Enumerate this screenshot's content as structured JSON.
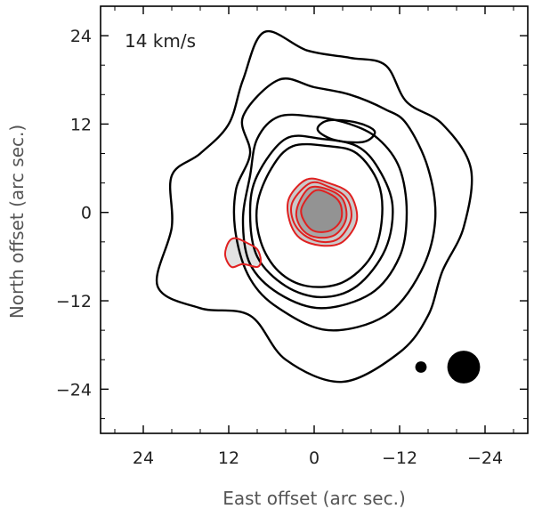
{
  "chart_data": {
    "type": "contour",
    "annotation": "14 km/s",
    "xlabel": "East offset (arc sec.)",
    "ylabel": "North offset (arc sec.)",
    "xlim": [
      30,
      -30
    ],
    "ylim": [
      -30,
      28
    ],
    "xticks": [
      24,
      12,
      0,
      -12,
      -24
    ],
    "yticks": [
      24,
      12,
      0,
      -12,
      -24
    ],
    "xtick_labels": [
      "24",
      "12",
      "0",
      "−12",
      "−24"
    ],
    "ytick_labels": [
      "24",
      "12",
      "0",
      "−12",
      "−24"
    ],
    "grid": false,
    "colors": {
      "outer_contours": "#000000",
      "inner_contours": "#e02020",
      "emission": "#8a8a8a"
    },
    "black_contours": [
      {
        "level": 1,
        "points": [
          [
            7,
            24.5
          ],
          [
            1,
            22
          ],
          [
            -5,
            21
          ],
          [
            -10,
            20
          ],
          [
            -13,
            15
          ],
          [
            -18,
            12
          ],
          [
            -22,
            6
          ],
          [
            -21,
            -2
          ],
          [
            -18,
            -8
          ],
          [
            -16,
            -14
          ],
          [
            -12,
            -19
          ],
          [
            -4,
            -23
          ],
          [
            4,
            -20
          ],
          [
            9,
            -14
          ],
          [
            16,
            -13
          ],
          [
            22,
            -10
          ],
          [
            20,
            -2
          ],
          [
            20,
            5
          ],
          [
            16,
            8
          ],
          [
            12,
            12
          ],
          [
            10,
            18
          ]
        ]
      },
      {
        "level": 2,
        "points": [
          [
            5,
            18
          ],
          [
            0,
            17
          ],
          [
            -5,
            16
          ],
          [
            -10,
            14
          ],
          [
            -13,
            12
          ],
          [
            -16,
            6
          ],
          [
            -17,
            -1
          ],
          [
            -15,
            -8
          ],
          [
            -10,
            -14
          ],
          [
            -2,
            -16
          ],
          [
            5,
            -13
          ],
          [
            9,
            -9
          ],
          [
            11,
            -3
          ],
          [
            11,
            3
          ],
          [
            9,
            8
          ],
          [
            10,
            13
          ]
        ]
      },
      {
        "level": 3,
        "points": [
          [
            5,
            13
          ],
          [
            0,
            13
          ],
          [
            -5,
            12
          ],
          [
            -9,
            10
          ],
          [
            -12,
            6
          ],
          [
            -13,
            0
          ],
          [
            -12,
            -6
          ],
          [
            -8,
            -11
          ],
          [
            -1,
            -13
          ],
          [
            5,
            -11
          ],
          [
            9,
            -7
          ],
          [
            10,
            -1
          ],
          [
            9,
            5
          ],
          [
            8,
            10
          ]
        ]
      },
      {
        "level": 4,
        "points": [
          [
            4,
            10
          ],
          [
            -1,
            10
          ],
          [
            -6,
            9
          ],
          [
            -9,
            6
          ],
          [
            -11,
            1
          ],
          [
            -10,
            -5
          ],
          [
            -6,
            -10
          ],
          [
            -1,
            -11.5
          ],
          [
            4,
            -10
          ],
          [
            8,
            -6
          ],
          [
            9,
            0
          ],
          [
            8,
            5
          ]
        ]
      },
      {
        "level": 5,
        "points": [
          [
            3,
            9
          ],
          [
            -2,
            9
          ],
          [
            -6,
            8
          ],
          [
            -9,
            4
          ],
          [
            -9.5,
            -1
          ],
          [
            -8,
            -6
          ],
          [
            -4,
            -9.5
          ],
          [
            1,
            -10
          ],
          [
            5,
            -8
          ],
          [
            7.5,
            -4
          ],
          [
            8,
            1
          ],
          [
            6,
            6
          ]
        ]
      },
      {
        "level": 6,
        "points": [
          [
            -2,
            12.5
          ],
          [
            -6,
            12.2
          ],
          [
            -8.5,
            11
          ],
          [
            -7,
            9.6
          ],
          [
            -3,
            9.8
          ],
          [
            -0.5,
            11.2
          ]
        ]
      }
    ],
    "red_contours": [
      {
        "level": 1,
        "points": [
          [
            1,
            4.5
          ],
          [
            -2,
            4
          ],
          [
            -5,
            2.5
          ],
          [
            -6,
            -1
          ],
          [
            -4,
            -4
          ],
          [
            -1,
            -4.5
          ],
          [
            2,
            -3.5
          ],
          [
            3.5,
            -1
          ],
          [
            3.5,
            2
          ]
        ]
      },
      {
        "level": 2,
        "points": [
          [
            0.5,
            4
          ],
          [
            -2,
            3.5
          ],
          [
            -4.5,
            2
          ],
          [
            -5.2,
            -0.8
          ],
          [
            -3.5,
            -3.5
          ],
          [
            -1,
            -4
          ],
          [
            1.5,
            -3
          ],
          [
            3,
            -1
          ],
          [
            3,
            1.5
          ]
        ]
      },
      {
        "level": 3,
        "points": [
          [
            0.5,
            3.4
          ],
          [
            -2,
            3.1
          ],
          [
            -4,
            1.8
          ],
          [
            -4.5,
            -0.8
          ],
          [
            -3,
            -3
          ],
          [
            -0.5,
            -3.4
          ],
          [
            1.5,
            -2.5
          ],
          [
            2.5,
            -0.5
          ],
          [
            2,
            1.6
          ]
        ]
      },
      {
        "level": 4,
        "points": [
          [
            0,
            2.9
          ],
          [
            -2,
            2.6
          ],
          [
            -3.6,
            1.3
          ],
          [
            -3.8,
            -0.9
          ],
          [
            -2.4,
            -2.4
          ],
          [
            -0.2,
            -2.6
          ],
          [
            1.2,
            -1.5
          ],
          [
            1.8,
            0.5
          ]
        ]
      },
      {
        "level": 5,
        "points": [
          [
            12,
            -4
          ],
          [
            11,
            -3.5
          ],
          [
            9.3,
            -4.2
          ],
          [
            8,
            -5
          ],
          [
            7.5,
            -6.5
          ],
          [
            8,
            -7.4
          ],
          [
            10,
            -7
          ],
          [
            11.6,
            -7.4
          ],
          [
            12.5,
            -5.8
          ]
        ]
      }
    ],
    "beams": [
      {
        "x": -15,
        "y": -21,
        "diameter": 1.6
      },
      {
        "x": -21,
        "y": -21,
        "diameter": 4.6
      }
    ]
  }
}
